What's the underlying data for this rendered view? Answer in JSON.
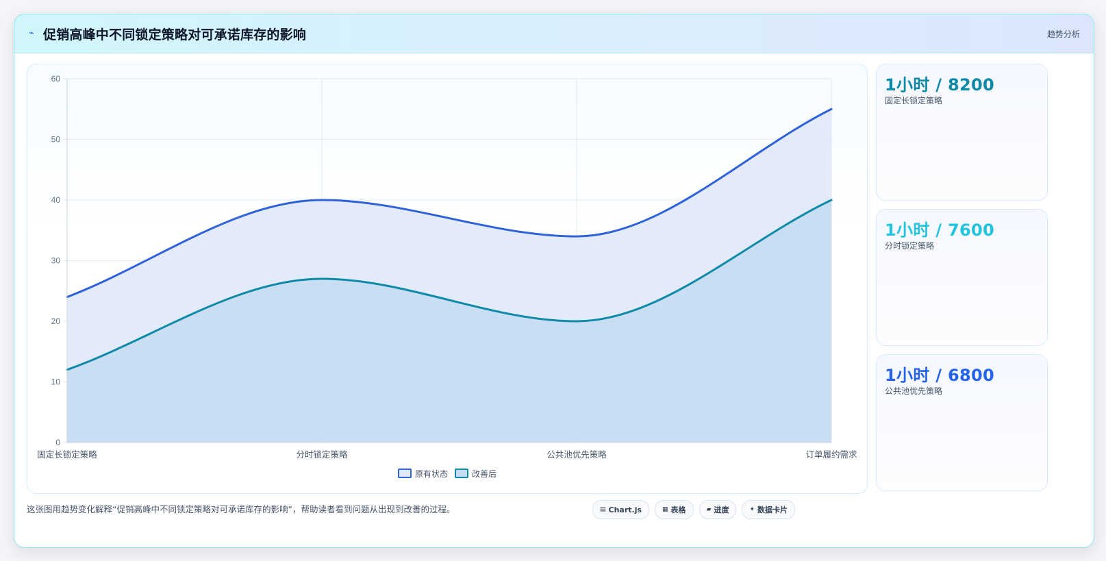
{
  "header": {
    "icon": "trend-icon",
    "title": "促销高峰中不同锁定策略对可承诺库存的影响",
    "tag": "趋势分析"
  },
  "chart_data": {
    "type": "area",
    "categories": [
      "固定长锁定策略",
      "分时锁定策略",
      "公共池优先策略",
      "订单履约需求"
    ],
    "series": [
      {
        "name": "原有状态",
        "values": [
          24,
          40,
          34,
          55
        ],
        "color": "#2f62d8",
        "fill": "#e0e9fa"
      },
      {
        "name": "改善后",
        "values": [
          12,
          27,
          20,
          40
        ],
        "color": "#0e8aa8",
        "fill": "#c5dcf2"
      }
    ],
    "ylim": [
      0,
      60
    ],
    "yticks": [
      0,
      10,
      20,
      30,
      40,
      50,
      60
    ],
    "grid": true,
    "legend_position": "bottom"
  },
  "stats": [
    {
      "value": "1小时 / 8200",
      "label": "固定长锁定策略",
      "color": "#0e8aa8"
    },
    {
      "value": "1小时 / 7600",
      "label": "分时锁定策略",
      "color": "#22c3dc"
    },
    {
      "value": "1小时 / 6800",
      "label": "公共池优先策略",
      "color": "#2563eb"
    }
  ],
  "footnote": "这张图用趋势变化解释“促销高峰中不同锁定策略对可承诺库存的影响”，帮助读者看到问题从出现到改善的过程。",
  "tools": [
    {
      "icon": "chart-icon",
      "glyph": "▤",
      "label": "Chart.js"
    },
    {
      "icon": "table-icon",
      "glyph": "▦",
      "label": "表格"
    },
    {
      "icon": "progress-icon",
      "glyph": "▰",
      "label": "进度"
    },
    {
      "icon": "card-icon",
      "glyph": "✦",
      "label": "数据卡片"
    }
  ]
}
